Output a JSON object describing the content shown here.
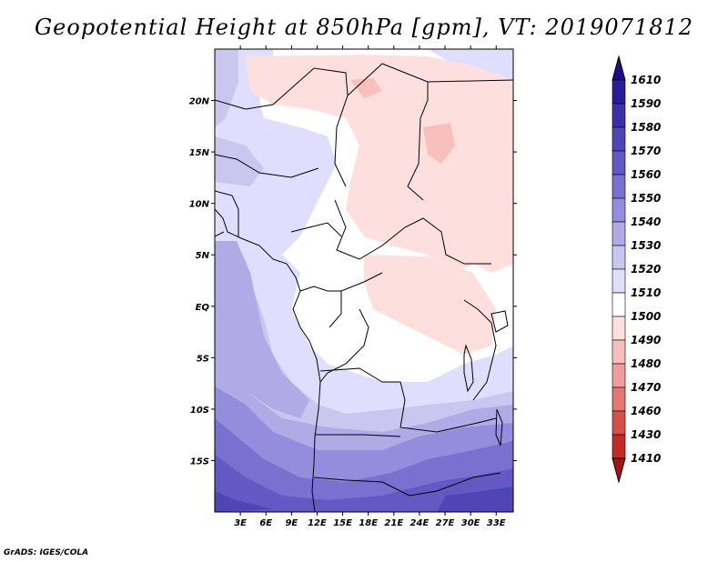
{
  "title": "Geopotential Height at 850hPa [gpm], VT: 2019071812",
  "footer": "GrADS: IGES/COLA",
  "map": {
    "lon_ticks": [
      "3E",
      "6E",
      "9E",
      "12E",
      "15E",
      "18E",
      "21E",
      "24E",
      "27E",
      "30E",
      "33E"
    ],
    "lat_ticks": [
      "20N",
      "15N",
      "10N",
      "5N",
      "EQ",
      "5S",
      "10S",
      "15S"
    ],
    "lon_range": [
      0,
      35
    ],
    "lat_range": [
      -20,
      25
    ]
  },
  "colorbar": {
    "levels": [
      "1610",
      "1590",
      "1580",
      "1570",
      "1560",
      "1550",
      "1540",
      "1530",
      "1520",
      "1510",
      "1500",
      "1490",
      "1480",
      "1470",
      "1460",
      "1430",
      "1410"
    ],
    "colors": [
      "#1e0c8c",
      "#2b1d9a",
      "#3c30a8",
      "#4f45b6",
      "#6358c4",
      "#7a70d0",
      "#948cdc",
      "#b0aae6",
      "#cac6f0",
      "#e0deff",
      "#ffffff",
      "#fde0de",
      "#f8bfbc",
      "#f09c98",
      "#e47570",
      "#d6504a",
      "#c42b25",
      "#a8130f"
    ]
  },
  "chart_data": {
    "type": "heatmap",
    "title": "Geopotential Height at 850hPa [gpm], VT: 2019071812",
    "variable": "Geopotential Height at 850hPa",
    "units": "gpm",
    "valid_time": "2019071812",
    "x": [
      "3E",
      "6E",
      "9E",
      "12E",
      "15E",
      "18E",
      "21E",
      "24E",
      "27E",
      "30E",
      "33E"
    ],
    "y": [
      "20N",
      "15N",
      "10N",
      "5N",
      "EQ",
      "5S",
      "10S",
      "15S"
    ],
    "color_levels": [
      1410,
      1430,
      1460,
      1470,
      1480,
      1490,
      1500,
      1510,
      1520,
      1530,
      1540,
      1550,
      1560,
      1570,
      1580,
      1590,
      1610
    ]
  }
}
